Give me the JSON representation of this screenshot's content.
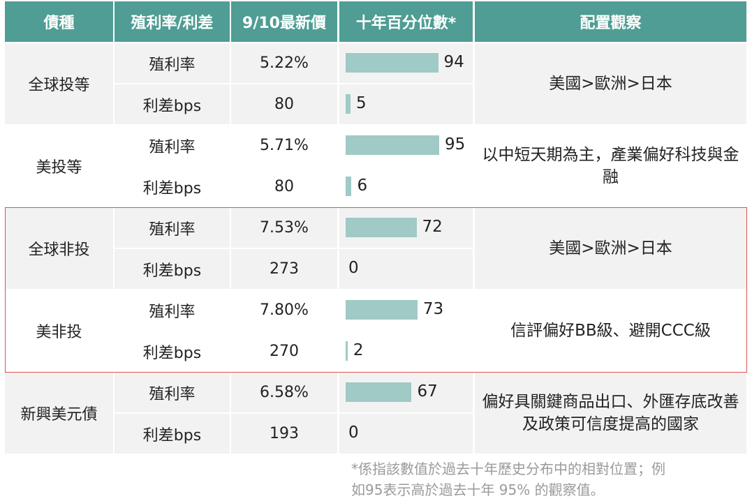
{
  "header": [
    "債種",
    "殖利率/利差",
    "9/10最新價",
    "十年百分位數*",
    "配置觀察"
  ],
  "groups": [
    {
      "name": "全球投等",
      "rows": [
        {
          "metric": "殖利率",
          "price": "5.22%",
          "percentile": 94
        },
        {
          "metric": "利差bps",
          "price": "80",
          "percentile": 5
        }
      ],
      "note": "美國>歐洲>日本"
    },
    {
      "name": "美投等",
      "rows": [
        {
          "metric": "殖利率",
          "price": "5.71%",
          "percentile": 95
        },
        {
          "metric": "利差bps",
          "price": "80",
          "percentile": 6
        }
      ],
      "note": "以中短天期為主，產業偏好科技與金融"
    },
    {
      "name": "全球非投",
      "rows": [
        {
          "metric": "殖利率",
          "price": "7.53%",
          "percentile": 72
        },
        {
          "metric": "利差bps",
          "price": "273",
          "percentile": 0
        }
      ],
      "note": "美國>歐洲>日本"
    },
    {
      "name": "美非投",
      "rows": [
        {
          "metric": "殖利率",
          "price": "7.80%",
          "percentile": 73
        },
        {
          "metric": "利差bps",
          "price": "270",
          "percentile": 2
        }
      ],
      "note": "信評偏好BB級、避開CCC級"
    },
    {
      "name": "新興美元債",
      "rows": [
        {
          "metric": "殖利率",
          "price": "6.58%",
          "percentile": 67
        },
        {
          "metric": "利差bps",
          "price": "193",
          "percentile": 0
        }
      ],
      "note": "偏好具關鍵商品出口、外匯存底改善及政策可信度提高的國家"
    }
  ],
  "footnote": [
    "*係指該數值於過去十年歷史分布中的相對位置；例",
    "如95表示高於過去十年 95% 的觀察值。"
  ]
}
